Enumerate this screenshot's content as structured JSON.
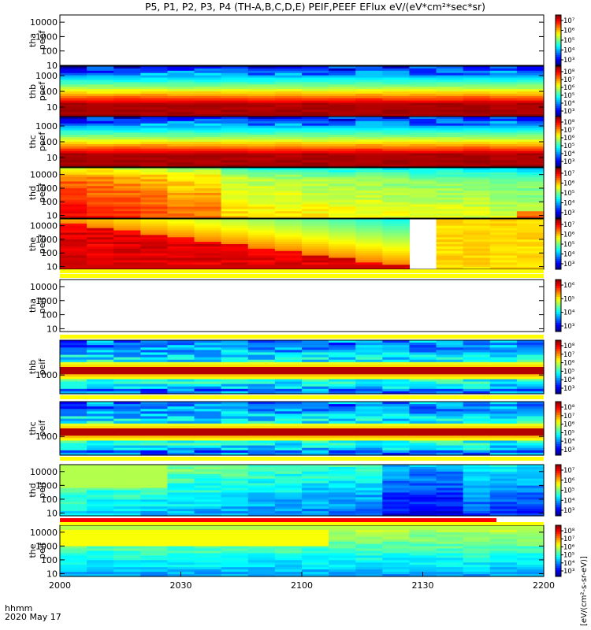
{
  "title": "P5, P1, P2, P3, P4 (TH-A,B,C,D,E) PEIF,PEEF EFlux eV/(eV*cm²*sec*sr)",
  "colorbar_label": "[eV/(cm²-s-sr-eV)]",
  "time_label": "hhmm",
  "date_label": "2020 May 17",
  "chart_data": {
    "type": "heatmap",
    "x_ticks": [
      "2000",
      "2030",
      "2100",
      "2130",
      "2200"
    ],
    "x_range": [
      "2000",
      "2200"
    ],
    "panels": [
      {
        "id": "tha-peef",
        "label_top": "tha",
        "label_bottom": "peef",
        "y_ticks": [
          "10000",
          "1000",
          "100",
          "10"
        ],
        "y_log_range": [
          1,
          4.5
        ],
        "cbar_ticks": [
          "10⁷",
          "10⁶",
          "10⁵",
          "10⁴",
          "10³"
        ],
        "status": "empty"
      },
      {
        "id": "thb-peef",
        "label_top": "thb",
        "label_bottom": "peef",
        "y_ticks": [
          "1000",
          "100",
          "10"
        ],
        "y_log_range": [
          0.4,
          3.6
        ],
        "cbar_ticks": [
          "10⁸",
          "10⁷",
          "10⁶",
          "10⁵",
          "10⁴",
          "10³"
        ],
        "pattern": "electron-band"
      },
      {
        "id": "thc-peef",
        "label_top": "thc",
        "label_bottom": "peef",
        "y_ticks": [
          "1000",
          "100",
          "10"
        ],
        "y_log_range": [
          0.4,
          3.6
        ],
        "cbar_ticks": [
          "10⁸",
          "10⁷",
          "10⁶",
          "10⁵",
          "10⁴",
          "10³"
        ],
        "pattern": "electron-band"
      },
      {
        "id": "thd-peef",
        "label_top": "thd",
        "label_bottom": "peef",
        "y_ticks": [
          "10000",
          "1000",
          "100",
          "10"
        ],
        "y_log_range": [
          0.8,
          4.5
        ],
        "cbar_ticks": [
          "10⁷",
          "10⁶",
          "10⁵",
          "10⁴",
          "10³"
        ],
        "pattern": "thd-electron"
      },
      {
        "id": "the-peef",
        "label_top": "the",
        "label_bottom": "peef",
        "y_ticks": [
          "10000",
          "1000",
          "100",
          "10"
        ],
        "y_log_range": [
          0.8,
          4.5
        ],
        "cbar_ticks": [
          "10⁷",
          "10⁶",
          "10⁵",
          "10⁴",
          "10³"
        ],
        "pattern": "the-electron"
      },
      {
        "id": "tha-peif",
        "label_top": "tha",
        "label_bottom": "peif",
        "y_ticks": [
          "10000",
          "1000",
          "100",
          "10"
        ],
        "y_log_range": [
          0.8,
          4.5
        ],
        "cbar_ticks": [
          "10⁶",
          "10⁵",
          "10⁴",
          "10³"
        ],
        "status": "empty"
      },
      {
        "id": "thb-peif",
        "label_top": "thb",
        "label_bottom": "peif",
        "y_ticks": [
          "1000"
        ],
        "y_log_range": [
          2.3,
          4.3
        ],
        "cbar_ticks": [
          "10⁸",
          "10⁷",
          "10⁶",
          "10⁵",
          "10⁴",
          "10³"
        ],
        "pattern": "ion-band"
      },
      {
        "id": "thc-peif",
        "label_top": "thc",
        "label_bottom": "peif",
        "y_ticks": [
          "1000"
        ],
        "y_log_range": [
          2.3,
          4.3
        ],
        "cbar_ticks": [
          "10⁸",
          "10⁷",
          "10⁶",
          "10⁵",
          "10⁴",
          "10³"
        ],
        "pattern": "ion-band"
      },
      {
        "id": "thd-peif",
        "label_top": "thd",
        "label_bottom": "peif",
        "y_ticks": [
          "10000",
          "1000",
          "100",
          "10"
        ],
        "y_log_range": [
          0.8,
          4.5
        ],
        "cbar_ticks": [
          "10⁷",
          "10⁶",
          "10⁵",
          "10⁴",
          "10³"
        ],
        "pattern": "thd-ion"
      },
      {
        "id": "the-peif",
        "label_top": "the",
        "label_bottom": "peif",
        "y_ticks": [
          "10000",
          "1000",
          "100",
          "10"
        ],
        "y_log_range": [
          0.8,
          4.5
        ],
        "cbar_ticks": [
          "10⁸",
          "10⁷",
          "10⁶",
          "10⁵",
          "10⁴",
          "10³"
        ],
        "pattern": "the-ion"
      }
    ]
  }
}
